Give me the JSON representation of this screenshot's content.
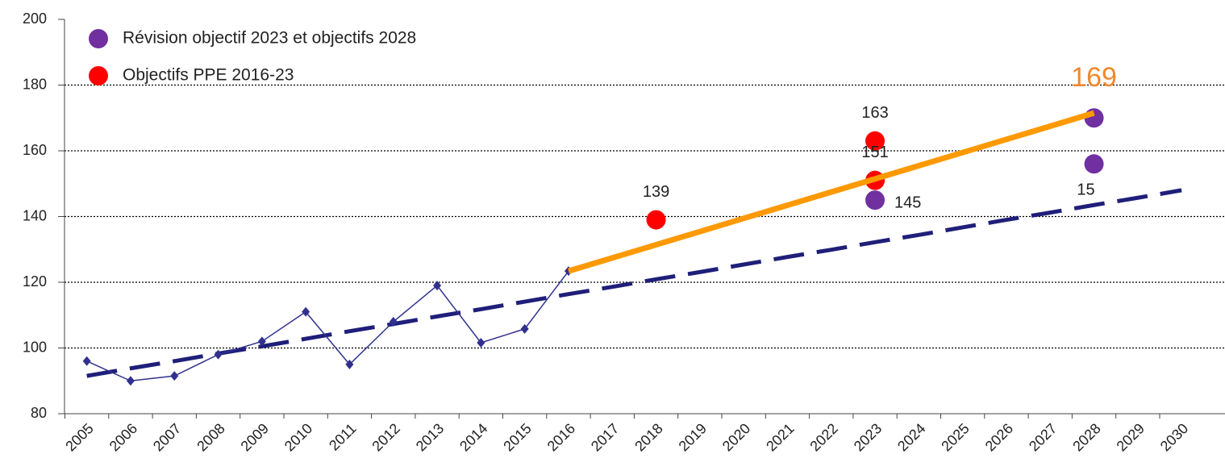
{
  "chart_data": {
    "type": "line",
    "categories": [
      "2005",
      "2006",
      "2007",
      "2008",
      "2009",
      "2010",
      "2011",
      "2012",
      "2013",
      "2014",
      "2015",
      "2016",
      "2017",
      "2018",
      "2019",
      "2020",
      "2021",
      "2022",
      "2023",
      "2024",
      "2025",
      "2026",
      "2027",
      "2028",
      "2029",
      "2030"
    ],
    "ylim": [
      80,
      200
    ],
    "yticks": [
      80,
      100,
      120,
      140,
      160,
      180,
      200
    ],
    "grid": true,
    "legend": "top-left",
    "series": [
      {
        "type": "line",
        "color": "#30308f",
        "x": [
          "2005",
          "2006",
          "2007",
          "2008",
          "2009",
          "2010",
          "2011",
          "2012",
          "2013",
          "2014",
          "2015",
          "2016"
        ],
        "values": [
          96,
          90,
          91.5,
          98,
          102,
          111,
          95,
          108,
          119,
          101.6,
          105.8,
          123.4
        ]
      },
      {
        "type": "dashed",
        "color": "#1f1f7a",
        "x": [
          "2005",
          "2006",
          "2007",
          "2008",
          "2009",
          "2010",
          "2011",
          "2012",
          "2013",
          "2014",
          "2015",
          "2016",
          "2017",
          "2018",
          "2019",
          "2020",
          "2021",
          "2022",
          "2023",
          "2024",
          "2025",
          "2026",
          "2027",
          "2028",
          "2029",
          "2030"
        ],
        "values": [
          91.5,
          93.8,
          96.0,
          98.3,
          100.5,
          102.8,
          105.1,
          107.3,
          109.6,
          111.8,
          114.1,
          116.4,
          118.6,
          120.9,
          123.1,
          125.4,
          127.7,
          129.9,
          132.2,
          134.4,
          136.7,
          139.0,
          141.2,
          143.5,
          145.7,
          148.0
        ]
      },
      {
        "type": "thick",
        "color": "#ff9900",
        "x": [
          "2016",
          "2028"
        ],
        "values": [
          123.4,
          171.5
        ]
      },
      {
        "type": "scatter",
        "name": "Révision objectif 2023 et objectifs 2028",
        "color": "#7030a0",
        "x": [
          "2023",
          "2028",
          "2028"
        ],
        "values": [
          145,
          170,
          156
        ],
        "value_labels": [
          "145",
          null,
          null
        ]
      },
      {
        "type": "scatter",
        "name": "Objectifs PPE 2016-23",
        "color": "#ff0000",
        "x": [
          "2018",
          "2023",
          "2023"
        ],
        "values": [
          139,
          163,
          151
        ],
        "value_labels": [
          "139",
          "163",
          "151"
        ]
      }
    ],
    "annotations": [
      "169",
      "15"
    ]
  }
}
